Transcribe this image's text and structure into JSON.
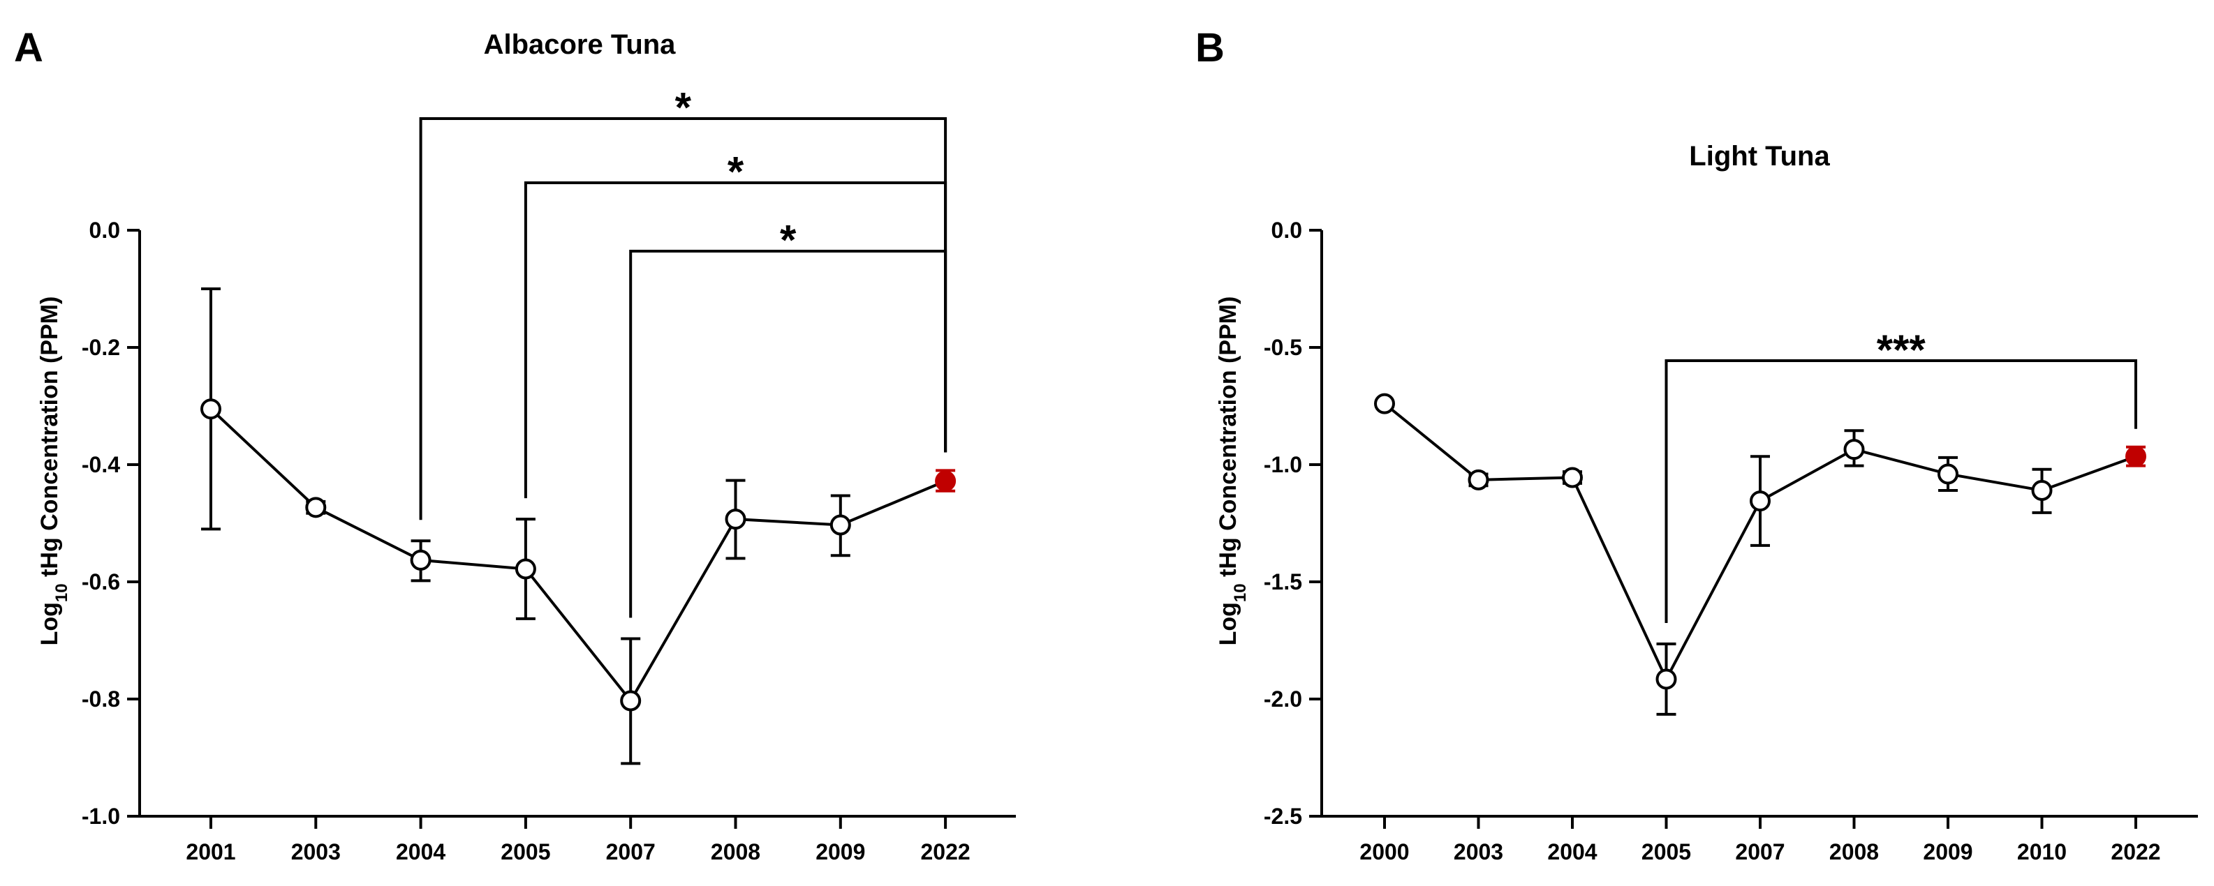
{
  "chart_data": [
    {
      "type": "line",
      "panel_label": "A",
      "title": "Albacore Tuna",
      "ylabel_parts": [
        "Log",
        "10",
        " tHg Concentration (PPM)"
      ],
      "xlabel": "",
      "ylim": [
        -1.0,
        0.0
      ],
      "yticks": [
        0.0,
        -0.2,
        -0.4,
        -0.6,
        -0.8,
        -1.0
      ],
      "ytick_labels": [
        "0.0",
        "-0.2",
        "-0.4",
        "-0.6",
        "-0.8",
        "-1.0"
      ],
      "categories": [
        "2001",
        "2003",
        "2004",
        "2005",
        "2007",
        "2008",
        "2009",
        "2022"
      ],
      "series": [
        {
          "name": "Albacore Tuna",
          "values": [
            -0.305,
            -0.473,
            -0.563,
            -0.578,
            -0.803,
            -0.493,
            -0.503,
            -0.428
          ],
          "error_low": [
            -0.51,
            -0.483,
            -0.598,
            -0.663,
            -0.91,
            -0.56,
            -0.555,
            -0.445
          ],
          "error_high": [
            -0.1,
            -0.463,
            -0.53,
            -0.493,
            -0.697,
            -0.427,
            -0.453,
            -0.41
          ],
          "highlight_index": 7
        }
      ],
      "significance": [
        {
          "from": "2004",
          "to": "2022",
          "label": "*"
        },
        {
          "from": "2005",
          "to": "2022",
          "label": "*"
        },
        {
          "from": "2007",
          "to": "2022",
          "label": "*"
        }
      ],
      "colors": {
        "line": "#000000",
        "highlight": "#c00000"
      }
    },
    {
      "type": "line",
      "panel_label": "B",
      "title": "Light Tuna",
      "ylabel_parts": [
        "Log",
        "10",
        " tHg Concentration (PPM)"
      ],
      "xlabel": "",
      "ylim": [
        -2.5,
        0.0
      ],
      "yticks": [
        0.0,
        -0.5,
        -1.0,
        -1.5,
        -2.0,
        -2.5
      ],
      "ytick_labels": [
        "0.0",
        "-0.5",
        "-1.0",
        "-1.5",
        "-2.0",
        "-2.5"
      ],
      "categories": [
        "2000",
        "2003",
        "2004",
        "2005",
        "2007",
        "2008",
        "2009",
        "2010",
        "2022"
      ],
      "series": [
        {
          "name": "Light Tuna",
          "values": [
            -0.74,
            -1.065,
            -1.055,
            -1.915,
            -1.155,
            -0.935,
            -1.04,
            -1.11,
            -0.965
          ],
          "error_low": [
            -0.74,
            -1.09,
            -1.08,
            -2.065,
            -1.345,
            -1.005,
            -1.11,
            -1.205,
            -1.005
          ],
          "error_high": [
            -0.74,
            -1.04,
            -1.03,
            -1.765,
            -0.965,
            -0.855,
            -0.97,
            -1.02,
            -0.925
          ],
          "highlight_index": 8
        }
      ],
      "significance": [
        {
          "from": "2005",
          "to": "2022",
          "label": "***"
        }
      ],
      "colors": {
        "line": "#000000",
        "highlight": "#c00000"
      }
    }
  ]
}
